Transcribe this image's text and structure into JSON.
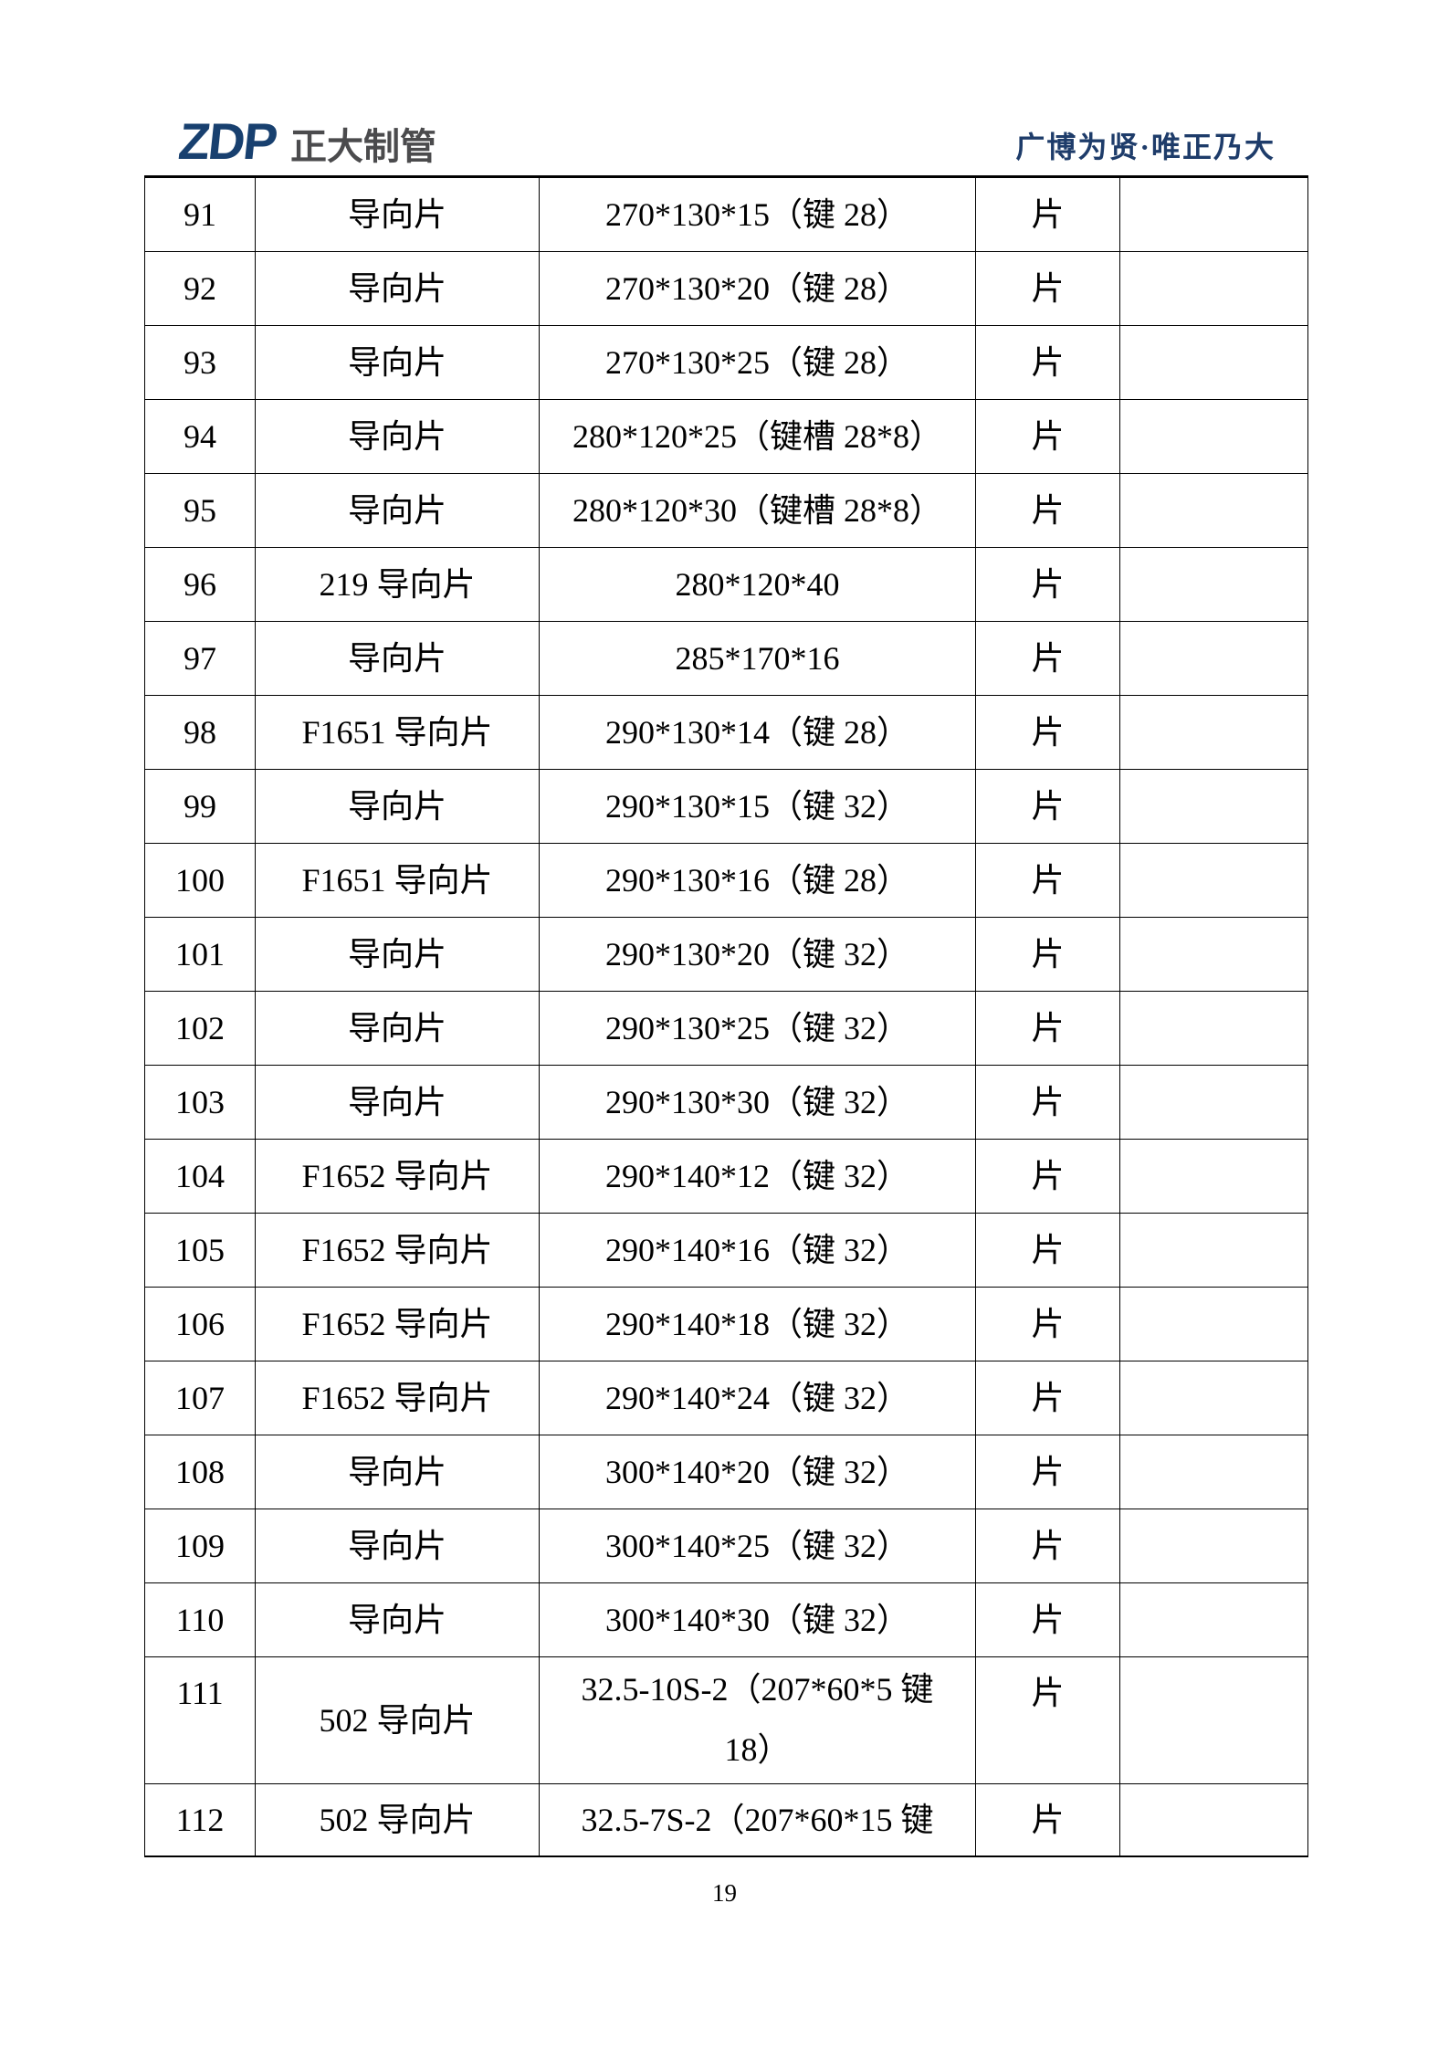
{
  "header": {
    "logo_text": "ZDP",
    "brand_name": "正大制管",
    "slogan": "广博为贤·唯正乃大"
  },
  "colors": {
    "logo_blue": "#18406f",
    "brand_gray": "#4b4b4d",
    "slogan_blue": "#1e3c6a",
    "table_border": "#000000"
  },
  "table": {
    "unit_label": "片",
    "rows": [
      {
        "no": "91",
        "name": "导向片",
        "spec": "270*130*15（键 28）",
        "unit": "片",
        "note": ""
      },
      {
        "no": "92",
        "name": "导向片",
        "spec": "270*130*20（键 28）",
        "unit": "片",
        "note": ""
      },
      {
        "no": "93",
        "name": "导向片",
        "spec": "270*130*25（键 28）",
        "unit": "片",
        "note": ""
      },
      {
        "no": "94",
        "name": "导向片",
        "spec": "280*120*25（键槽 28*8）",
        "unit": "片",
        "note": ""
      },
      {
        "no": "95",
        "name": "导向片",
        "spec": "280*120*30（键槽 28*8）",
        "unit": "片",
        "note": ""
      },
      {
        "no": "96",
        "name": "219 导向片",
        "spec": "280*120*40",
        "unit": "片",
        "note": ""
      },
      {
        "no": "97",
        "name": "导向片",
        "spec": "285*170*16",
        "unit": "片",
        "note": ""
      },
      {
        "no": "98",
        "name": "F1651 导向片",
        "spec": "290*130*14（键 28）",
        "unit": "片",
        "note": ""
      },
      {
        "no": "99",
        "name": "导向片",
        "spec": "290*130*15（键 32）",
        "unit": "片",
        "note": ""
      },
      {
        "no": "100",
        "name": "F1651 导向片",
        "spec": "290*130*16（键 28）",
        "unit": "片",
        "note": ""
      },
      {
        "no": "101",
        "name": "导向片",
        "spec": "290*130*20（键 32）",
        "unit": "片",
        "note": ""
      },
      {
        "no": "102",
        "name": "导向片",
        "spec": "290*130*25（键 32）",
        "unit": "片",
        "note": ""
      },
      {
        "no": "103",
        "name": "导向片",
        "spec": "290*130*30（键 32）",
        "unit": "片",
        "note": ""
      },
      {
        "no": "104",
        "name": "F1652 导向片",
        "spec": "290*140*12（键 32）",
        "unit": "片",
        "note": ""
      },
      {
        "no": "105",
        "name": "F1652 导向片",
        "spec": "290*140*16（键 32）",
        "unit": "片",
        "note": ""
      },
      {
        "no": "106",
        "name": "F1652 导向片",
        "spec": "290*140*18（键 32）",
        "unit": "片",
        "note": ""
      },
      {
        "no": "107",
        "name": "F1652 导向片",
        "spec": "290*140*24（键 32）",
        "unit": "片",
        "note": ""
      },
      {
        "no": "108",
        "name": "导向片",
        "spec": "300*140*20（键 32）",
        "unit": "片",
        "note": ""
      },
      {
        "no": "109",
        "name": "导向片",
        "spec": "300*140*25（键 32）",
        "unit": "片",
        "note": ""
      },
      {
        "no": "110",
        "name": "导向片",
        "spec": "300*140*30（键 32）",
        "unit": "片",
        "note": ""
      },
      {
        "no": "111",
        "name": "502 导向片",
        "spec": "32.5-10S-2（207*60*5 键 18）",
        "spec_lines": [
          "32.5-10S-2（207*60*5 键",
          "18）"
        ],
        "unit": "片",
        "note": ""
      },
      {
        "no": "112",
        "name": "502 导向片",
        "spec": "32.5-7S-2（207*60*15 键",
        "unit": "片",
        "note": ""
      }
    ]
  },
  "footer": {
    "page_number": "19"
  }
}
